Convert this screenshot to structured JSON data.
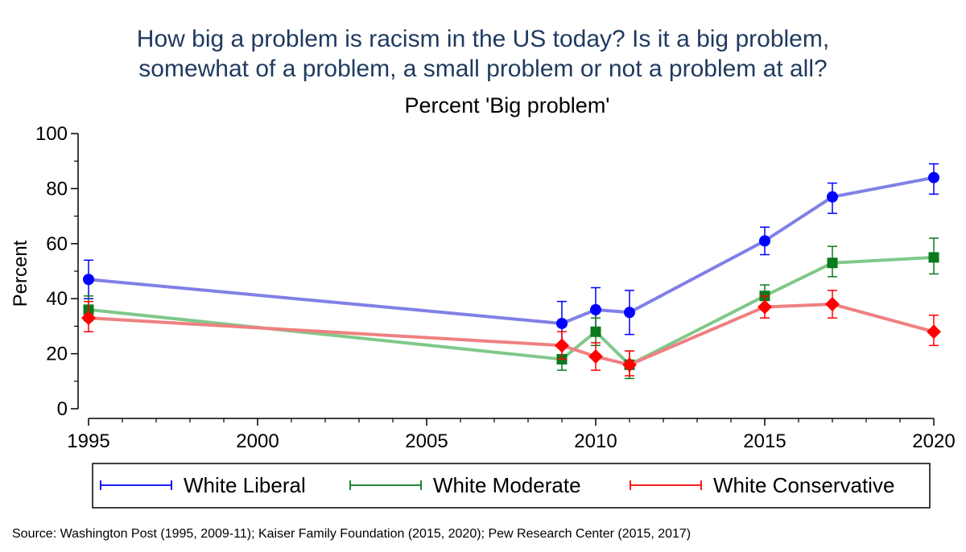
{
  "chart_data": {
    "type": "line",
    "title_lines": [
      "How big a problem is racism in the US today? Is it a big problem,",
      "somewhat of a problem, a small problem or not a problem at all?"
    ],
    "subtitle": "Percent 'Big problem'",
    "xlabel": "",
    "ylabel": "Percent",
    "xlim": [
      1995,
      2020
    ],
    "ylim": [
      0,
      100
    ],
    "x_ticks": [
      1995,
      2000,
      2005,
      2010,
      2015,
      2020
    ],
    "y_ticks": [
      0,
      20,
      40,
      60,
      80,
      100
    ],
    "grid": false,
    "legend_position": "bottom",
    "error_bars": true,
    "series": [
      {
        "name": "White Liberal",
        "color": "#0000ff",
        "line_color": "#8080e8",
        "marker": "circle",
        "x": [
          1995,
          2009,
          2010,
          2011,
          2015,
          2017,
          2020
        ],
        "y": [
          47,
          31,
          36,
          35,
          61,
          77,
          84
        ],
        "y_lower": [
          40,
          23,
          27,
          27,
          56,
          71,
          78
        ],
        "y_upper": [
          54,
          39,
          44,
          43,
          66,
          82,
          89
        ]
      },
      {
        "name": "White Moderate",
        "color": "#0a7a1e",
        "line_color": "#80c88a",
        "marker": "square",
        "x": [
          1995,
          2009,
          2010,
          2011,
          2015,
          2017,
          2020
        ],
        "y": [
          36,
          18,
          28,
          16,
          41,
          53,
          55
        ],
        "y_lower": [
          32,
          14,
          23,
          11,
          37,
          48,
          49
        ],
        "y_upper": [
          41,
          23,
          33,
          21,
          45,
          59,
          62
        ]
      },
      {
        "name": "White Conservative",
        "color": "#ff0000",
        "line_color": "#f08080",
        "marker": "diamond",
        "x": [
          1995,
          2009,
          2010,
          2011,
          2015,
          2017,
          2020
        ],
        "y": [
          33,
          23,
          19,
          16,
          37,
          38,
          28
        ],
        "y_lower": [
          28,
          18,
          14,
          12,
          33,
          33,
          23
        ],
        "y_upper": [
          39,
          28,
          24,
          21,
          41,
          43,
          34
        ]
      }
    ],
    "note": "Source: Washington Post (1995, 2009-11); Kaiser Family Foundation (2015, 2020); Pew Research Center (2015, 2017)"
  }
}
